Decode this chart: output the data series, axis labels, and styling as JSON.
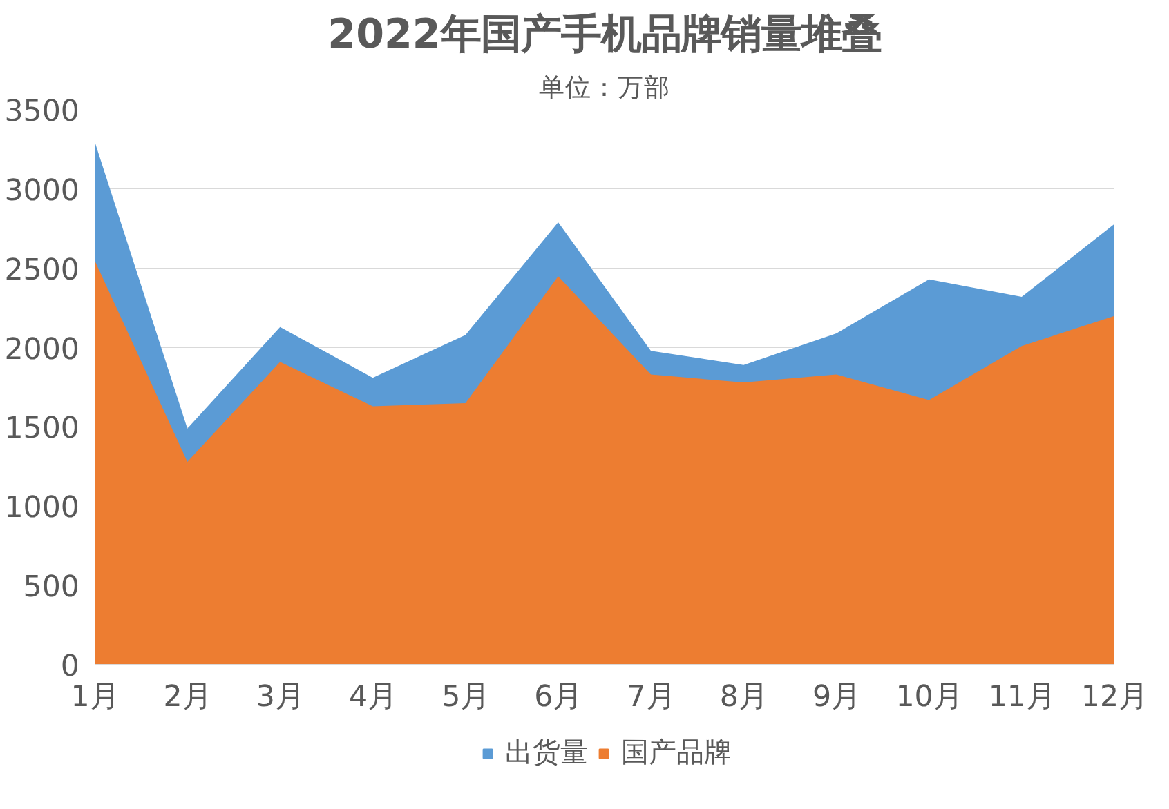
{
  "chart_data": {
    "type": "area",
    "title": "2022年国产手机品牌销量堆叠",
    "subtitle": "单位：万部",
    "categories": [
      "1月",
      "2月",
      "3月",
      "4月",
      "5月",
      "6月",
      "7月",
      "8月",
      "9月",
      "10月",
      "11月",
      "12月"
    ],
    "series": [
      {
        "name": "出货量",
        "color": "#5b9bd5",
        "values": [
          3300,
          1490,
          2130,
          1810,
          2080,
          2790,
          1980,
          1890,
          2090,
          2430,
          2320,
          2780
        ]
      },
      {
        "name": "国产品牌",
        "color": "#ed7d31",
        "values": [
          2550,
          1280,
          1910,
          1630,
          1650,
          2450,
          1830,
          1780,
          1830,
          1670,
          2010,
          2200
        ]
      }
    ],
    "ylim": [
      0,
      3500
    ],
    "yticks": [
      0,
      500,
      1000,
      1500,
      2000,
      2500,
      3000,
      3500
    ],
    "grid": "y",
    "legend": "bottom"
  }
}
